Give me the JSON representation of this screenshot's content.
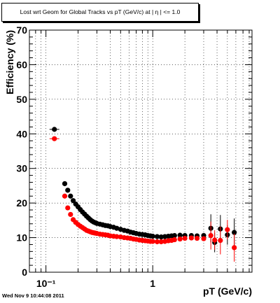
{
  "title": "Lost wrt Geom for Global Tracks vs pT (GeV/c) at |  η | <= 1.0",
  "timestamp": "Wed Nov  9 10:44:08 2011",
  "chart_data": {
    "type": "scatter",
    "xlabel": "pT (GeV/c)",
    "ylabel": "Efficiency (%)",
    "xscale": "log",
    "xlim": [
      0.07,
      8.5
    ],
    "ylim": [
      0,
      70
    ],
    "x_tick_labels": [
      "10⁻¹",
      "1"
    ],
    "y_tick_labels": [
      "0",
      "10",
      "20",
      "30",
      "40",
      "50",
      "60",
      "70"
    ],
    "grid": true,
    "series": [
      {
        "color": "#000000",
        "x": [
          0.12,
          0.15,
          0.16,
          0.17,
          0.18,
          0.19,
          0.2,
          0.21,
          0.22,
          0.23,
          0.24,
          0.25,
          0.26,
          0.27,
          0.28,
          0.29,
          0.3,
          0.32,
          0.34,
          0.36,
          0.38,
          0.4,
          0.43,
          0.46,
          0.5,
          0.54,
          0.58,
          0.62,
          0.66,
          0.7,
          0.75,
          0.8,
          0.85,
          0.9,
          0.95,
          1.0,
          1.1,
          1.2,
          1.3,
          1.4,
          1.5,
          1.6,
          1.8,
          2.0,
          2.3,
          2.6,
          3.0,
          3.5,
          3.8,
          4.3,
          5.0,
          5.8
        ],
        "y": [
          41.3,
          25.6,
          23.7,
          22.0,
          20.7,
          19.7,
          18.9,
          18.1,
          17.4,
          16.8,
          16.2,
          15.7,
          15.2,
          14.8,
          14.5,
          14.3,
          14.1,
          13.9,
          13.7,
          13.5,
          13.4,
          13.2,
          13.0,
          12.7,
          12.4,
          12.1,
          11.9,
          11.6,
          11.4,
          11.2,
          11.0,
          10.9,
          10.8,
          10.6,
          10.5,
          10.4,
          10.3,
          10.2,
          10.3,
          10.4,
          10.5,
          10.6,
          10.7,
          10.6,
          10.6,
          10.5,
          10.6,
          12.7,
          8.6,
          12.5,
          10.8,
          11.5
        ]
      },
      {
        "color": "#ff0000",
        "x": [
          0.12,
          0.15,
          0.16,
          0.17,
          0.18,
          0.19,
          0.2,
          0.21,
          0.22,
          0.23,
          0.24,
          0.25,
          0.26,
          0.27,
          0.28,
          0.29,
          0.3,
          0.32,
          0.34,
          0.36,
          0.38,
          0.4,
          0.43,
          0.46,
          0.5,
          0.54,
          0.58,
          0.62,
          0.66,
          0.7,
          0.75,
          0.8,
          0.85,
          0.9,
          0.95,
          1.0,
          1.1,
          1.2,
          1.3,
          1.4,
          1.5,
          1.6,
          1.8,
          2.0,
          2.3,
          2.6,
          3.0,
          3.5,
          3.8,
          4.3,
          5.0,
          5.8
        ],
        "y": [
          38.6,
          22.0,
          18.6,
          16.7,
          15.2,
          14.4,
          13.8,
          13.3,
          12.9,
          12.5,
          12.1,
          11.9,
          11.7,
          11.5,
          11.4,
          11.3,
          11.2,
          11.0,
          10.9,
          10.8,
          10.7,
          10.5,
          10.4,
          10.3,
          10.2,
          10.0,
          9.9,
          9.8,
          9.6,
          9.5,
          9.3,
          9.2,
          9.1,
          9.0,
          8.9,
          8.9,
          8.8,
          8.8,
          8.9,
          9.1,
          9.2,
          9.4,
          9.6,
          9.8,
          9.9,
          9.8,
          9.7,
          10.6,
          9.3,
          9.2,
          12.3,
          7.1
        ]
      }
    ]
  }
}
